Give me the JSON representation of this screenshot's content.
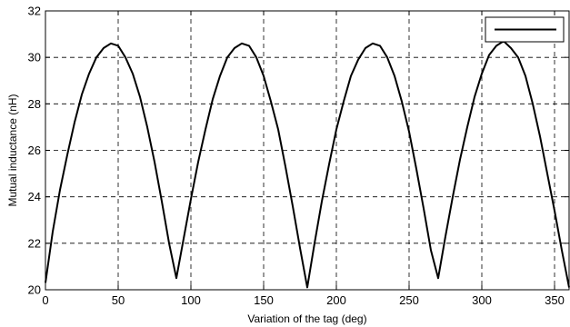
{
  "chart_data": {
    "type": "line",
    "xlabel": "Variation of the tag (deg)",
    "ylabel": "Mutual inductance (nH)",
    "xlim": [
      0,
      360
    ],
    "ylim": [
      20,
      32
    ],
    "xticks": [
      0,
      50,
      100,
      150,
      200,
      250,
      300,
      350
    ],
    "yticks": [
      20,
      22,
      24,
      26,
      28,
      30,
      32
    ],
    "grid": true,
    "grid_style": "dashed",
    "legend": {
      "placement": "top-right",
      "entries": [
        ""
      ]
    },
    "series": [
      {
        "color": "#000000",
        "x": [
          0,
          5,
          10,
          15,
          20,
          25,
          30,
          35,
          40,
          45,
          50,
          55,
          60,
          65,
          70,
          75,
          80,
          85,
          90,
          95,
          100,
          105,
          110,
          115,
          120,
          125,
          130,
          135,
          140,
          145,
          150,
          155,
          160,
          165,
          170,
          175,
          180,
          185,
          190,
          195,
          200,
          205,
          210,
          215,
          220,
          225,
          230,
          235,
          240,
          245,
          250,
          255,
          260,
          265,
          270,
          275,
          280,
          285,
          290,
          295,
          300,
          305,
          310,
          315,
          320,
          325,
          330,
          335,
          340,
          345,
          350,
          355,
          360
        ],
        "y": [
          20.3,
          22.5,
          24.3,
          25.8,
          27.2,
          28.4,
          29.3,
          30.0,
          30.4,
          30.6,
          30.5,
          30.0,
          29.3,
          28.3,
          27.0,
          25.5,
          23.8,
          22.0,
          20.5,
          22.2,
          23.9,
          25.5,
          26.9,
          28.2,
          29.2,
          30.0,
          30.4,
          30.6,
          30.5,
          30.0,
          29.2,
          28.1,
          26.9,
          25.3,
          23.6,
          21.8,
          20.1,
          22.0,
          23.8,
          25.4,
          26.9,
          28.1,
          29.2,
          29.9,
          30.4,
          30.6,
          30.5,
          30.0,
          29.2,
          28.1,
          26.8,
          25.2,
          23.5,
          21.7,
          20.5,
          22.3,
          24.0,
          25.6,
          27.0,
          28.3,
          29.3,
          30.1,
          30.5,
          30.7,
          30.4,
          30.0,
          29.2,
          28.0,
          26.6,
          25.0,
          23.4,
          21.7,
          20.1
        ]
      }
    ]
  }
}
